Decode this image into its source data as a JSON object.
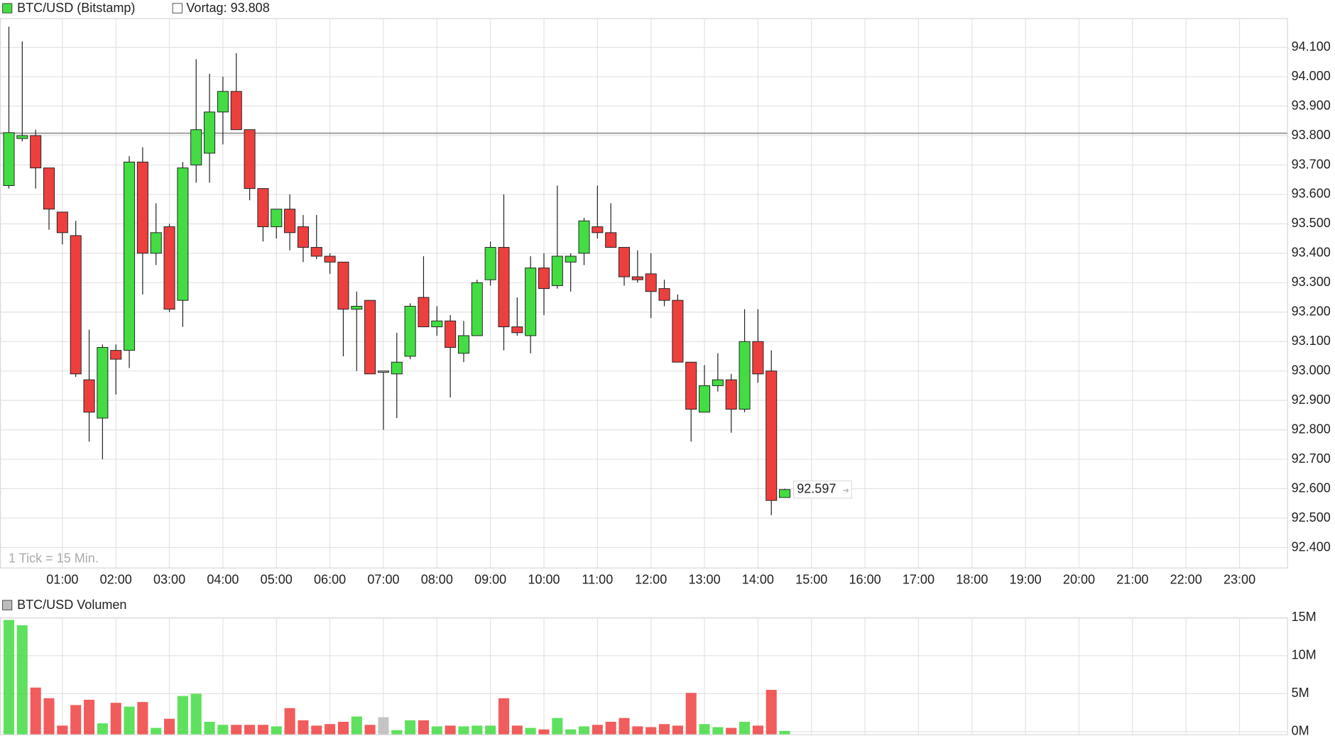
{
  "chart_data": {
    "type": "candlestick",
    "title": "BTC/USD (Bitstamp)",
    "prev_close_label": "Vortag:",
    "prev_close": 93.808,
    "last_price": 92.597,
    "note": "1 Tick = 15 Min.",
    "up_color": "#43dc43",
    "down_color": "#ee3f3f",
    "neutral_color": "#bbbbbb",
    "grid": true,
    "x": [
      0,
      0.25,
      0.5,
      0.75,
      1,
      1.25,
      1.5,
      1.75,
      2,
      2.25,
      2.5,
      2.75,
      3,
      3.25,
      3.5,
      3.75,
      4,
      4.25,
      4.5,
      4.75,
      5,
      5.25,
      5.5,
      5.75,
      6,
      6.25,
      6.5,
      6.75,
      7,
      7.25,
      7.5,
      7.75,
      8,
      8.25,
      8.5,
      8.75,
      9,
      9.25,
      9.5,
      9.75,
      10,
      10.25,
      10.5,
      10.75,
      11,
      11.25,
      11.5,
      11.75,
      12,
      12.25,
      12.5,
      12.75,
      13,
      13.25,
      13.5,
      13.75,
      14,
      14.25,
      14.5
    ],
    "open": [
      93.63,
      93.79,
      93.8,
      93.69,
      93.54,
      93.46,
      92.97,
      92.84,
      93.07,
      93.07,
      93.71,
      93.4,
      93.49,
      93.24,
      93.7,
      93.74,
      93.88,
      93.95,
      93.82,
      93.62,
      93.49,
      93.55,
      93.49,
      93.42,
      93.39,
      93.37,
      93.21,
      93.24,
      93.0,
      92.99,
      93.05,
      93.25,
      93.15,
      93.17,
      93.06,
      93.12,
      93.31,
      93.42,
      93.15,
      93.12,
      93.35,
      93.29,
      93.37,
      93.4,
      93.49,
      93.47,
      93.42,
      93.32,
      93.33,
      93.28,
      93.24,
      93.03,
      92.86,
      92.95,
      92.97,
      92.87,
      93.1,
      93.0,
      92.57
    ],
    "high": [
      94.17,
      94.12,
      93.82,
      93.69,
      93.54,
      93.51,
      93.14,
      93.09,
      93.09,
      93.73,
      93.76,
      93.57,
      93.5,
      93.71,
      94.06,
      94.01,
      94.0,
      94.08,
      93.82,
      93.62,
      93.55,
      93.6,
      93.53,
      93.53,
      93.4,
      93.37,
      93.27,
      93.24,
      93.0,
      93.13,
      93.23,
      93.39,
      93.22,
      93.19,
      93.17,
      93.31,
      93.44,
      93.6,
      93.25,
      93.39,
      93.4,
      93.63,
      93.4,
      93.52,
      93.63,
      93.57,
      93.42,
      93.41,
      93.4,
      93.31,
      93.26,
      93.03,
      93.02,
      93.06,
      92.99,
      93.21,
      93.21,
      93.07,
      92.6
    ],
    "low": [
      93.62,
      93.78,
      93.62,
      93.48,
      93.43,
      92.98,
      92.76,
      92.7,
      92.92,
      93.01,
      93.26,
      93.36,
      93.2,
      93.15,
      93.64,
      93.64,
      93.77,
      93.82,
      93.58,
      93.44,
      93.45,
      93.41,
      93.37,
      93.38,
      93.33,
      93.05,
      93.0,
      92.99,
      92.8,
      92.84,
      93.04,
      93.15,
      93.12,
      92.91,
      93.03,
      93.12,
      93.29,
      93.07,
      93.12,
      93.06,
      93.19,
      93.28,
      93.27,
      93.36,
      93.45,
      93.42,
      93.29,
      93.3,
      93.18,
      93.22,
      93.03,
      92.76,
      92.86,
      92.93,
      92.79,
      92.86,
      92.96,
      92.51,
      92.57
    ],
    "close": [
      93.81,
      93.8,
      93.69,
      93.55,
      93.47,
      92.99,
      92.86,
      93.08,
      93.04,
      93.71,
      93.4,
      93.47,
      93.21,
      93.69,
      93.82,
      93.88,
      93.95,
      93.82,
      93.62,
      93.49,
      93.55,
      93.47,
      93.42,
      93.39,
      93.37,
      93.21,
      93.22,
      92.99,
      93.0,
      93.03,
      93.22,
      93.15,
      93.17,
      93.08,
      93.12,
      93.3,
      93.42,
      93.15,
      93.13,
      93.35,
      93.28,
      93.39,
      93.39,
      93.51,
      93.47,
      93.42,
      93.32,
      93.31,
      93.27,
      93.24,
      93.03,
      92.87,
      92.95,
      92.97,
      92.87,
      93.1,
      92.99,
      92.56,
      92.597
    ],
    "xlim": [
      -0.166,
      23.89
    ],
    "xticks": [
      {
        "value": 1,
        "label": "01:00"
      },
      {
        "value": 2,
        "label": "02:00"
      },
      {
        "value": 3,
        "label": "03:00"
      },
      {
        "value": 4,
        "label": "04:00"
      },
      {
        "value": 5,
        "label": "05:00"
      },
      {
        "value": 6,
        "label": "06:00"
      },
      {
        "value": 7,
        "label": "07:00"
      },
      {
        "value": 8,
        "label": "08:00"
      },
      {
        "value": 9,
        "label": "09:00"
      },
      {
        "value": 10,
        "label": "10:00"
      },
      {
        "value": 11,
        "label": "11:00"
      },
      {
        "value": 12,
        "label": "12:00"
      },
      {
        "value": 13,
        "label": "13:00"
      },
      {
        "value": 14,
        "label": "14:00"
      },
      {
        "value": 15,
        "label": "15:00"
      },
      {
        "value": 16,
        "label": "16:00"
      },
      {
        "value": 17,
        "label": "17:00"
      },
      {
        "value": 18,
        "label": "18:00"
      },
      {
        "value": 19,
        "label": "19:00"
      },
      {
        "value": 20,
        "label": "20:00"
      },
      {
        "value": 21,
        "label": "21:00"
      },
      {
        "value": 22,
        "label": "22:00"
      },
      {
        "value": 23,
        "label": "23:00"
      }
    ],
    "ylim": [
      92.332,
      94.199
    ],
    "yticks": [
      {
        "value": 94.1,
        "label": "94.100"
      },
      {
        "value": 94.0,
        "label": "94.000"
      },
      {
        "value": 93.9,
        "label": "93.900"
      },
      {
        "value": 93.8,
        "label": "93.800"
      },
      {
        "value": 93.7,
        "label": "93.700"
      },
      {
        "value": 93.6,
        "label": "93.600"
      },
      {
        "value": 93.5,
        "label": "93.500"
      },
      {
        "value": 93.4,
        "label": "93.400"
      },
      {
        "value": 93.3,
        "label": "93.300"
      },
      {
        "value": 93.2,
        "label": "93.200"
      },
      {
        "value": 93.1,
        "label": "93.100"
      },
      {
        "value": 93.0,
        "label": "93.000"
      },
      {
        "value": 92.9,
        "label": "92.900"
      },
      {
        "value": 92.8,
        "label": "92.800"
      },
      {
        "value": 92.7,
        "label": "92.700"
      },
      {
        "value": 92.6,
        "label": "92.600"
      },
      {
        "value": 92.5,
        "label": "92.500"
      },
      {
        "value": 92.4,
        "label": "92.400"
      }
    ],
    "volume": {
      "title": "BTC/USD Volumen",
      "values": [
        14.7,
        14.0,
        5.8,
        4.4,
        0.8,
        3.5,
        4.2,
        1.1,
        3.8,
        3.3,
        3.9,
        0.5,
        1.7,
        4.7,
        5.0,
        1.3,
        0.9,
        0.9,
        0.9,
        0.9,
        0.7,
        3.1,
        1.5,
        0.8,
        1.0,
        1.3,
        2.0,
        0.9,
        1.9,
        0.2,
        1.5,
        1.5,
        0.7,
        0.8,
        0.7,
        0.8,
        0.8,
        4.4,
        0.8,
        0.5,
        0.3,
        1.8,
        0.3,
        0.7,
        0.9,
        1.3,
        1.8,
        0.7,
        0.6,
        1.0,
        0.8,
        5.1,
        1.0,
        0.6,
        0.5,
        1.3,
        0.8,
        5.5,
        0.1
      ],
      "ylim": [
        0,
        15
      ],
      "yticks": [
        {
          "value": 15,
          "label": "15M"
        },
        {
          "value": 10,
          "label": "10M"
        },
        {
          "value": 5,
          "label": "5M"
        },
        {
          "value": 0,
          "label": "0M"
        }
      ]
    }
  }
}
